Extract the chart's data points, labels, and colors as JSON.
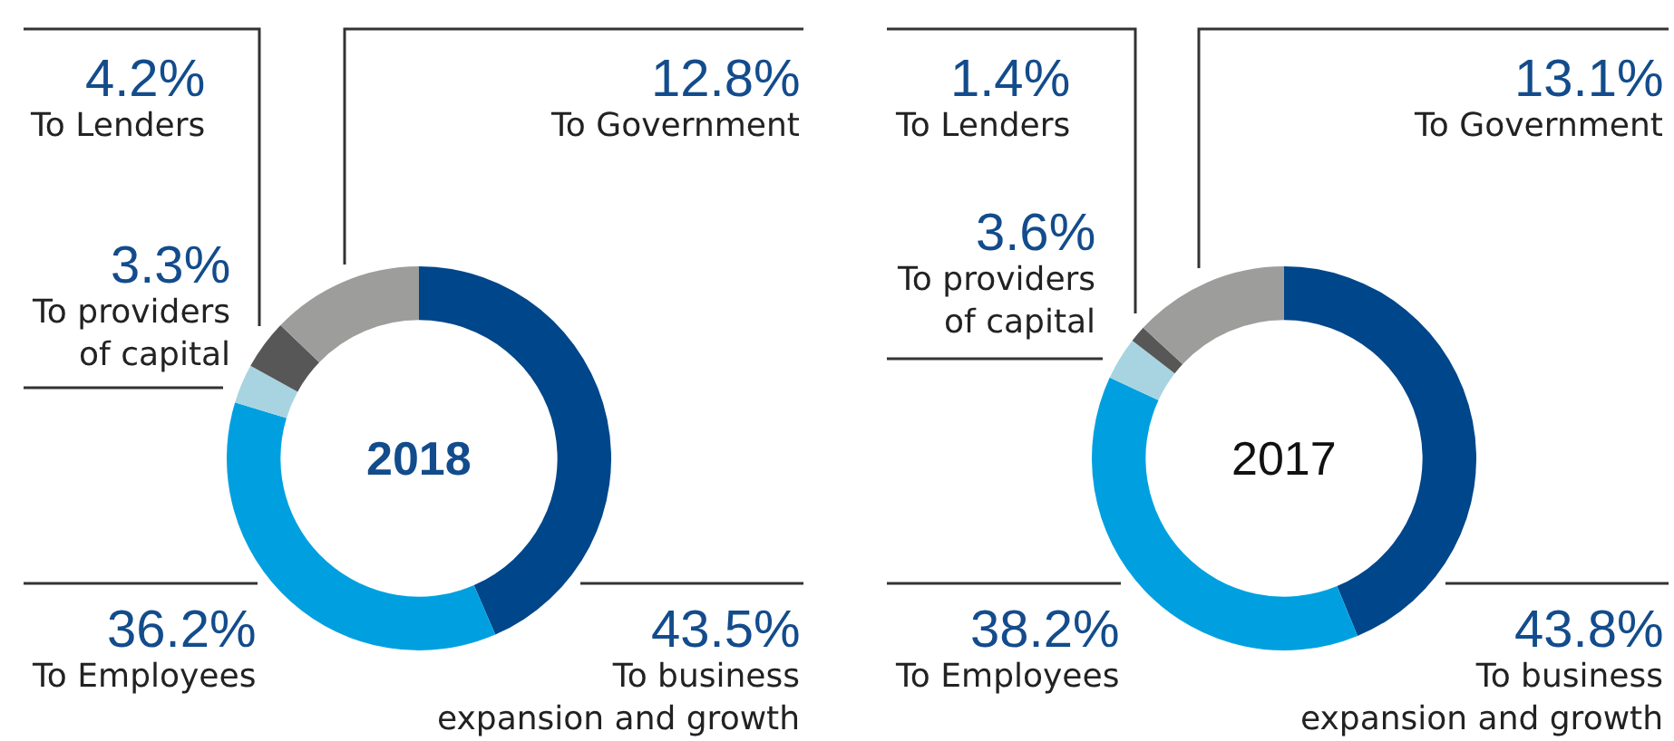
{
  "chart_data": [
    {
      "type": "donut",
      "title": "2018",
      "categories": [
        "To business expansion and growth",
        "To Employees",
        "To providers of capital",
        "To Lenders",
        "To Government"
      ],
      "values": [
        43.5,
        36.2,
        3.3,
        4.2,
        12.8
      ],
      "value_labels": [
        "43.5%",
        "36.2%",
        "3.3%",
        "4.2%",
        "12.8%"
      ],
      "colors": [
        "#00468a",
        "#00a0e0",
        "#a8d4e2",
        "#575757",
        "#9d9d9c"
      ]
    },
    {
      "type": "donut",
      "title": "2017",
      "categories": [
        "To business expansion and growth",
        "To Employees",
        "To providers of capital",
        "To Lenders",
        "To Government"
      ],
      "values": [
        43.8,
        38.2,
        3.6,
        1.4,
        13.1
      ],
      "value_labels": [
        "43.8%",
        "38.2%",
        "3.6%",
        "1.4%",
        "13.1%"
      ],
      "colors": [
        "#00468a",
        "#00a0e0",
        "#a8d4e2",
        "#575757",
        "#9d9d9c"
      ]
    }
  ]
}
